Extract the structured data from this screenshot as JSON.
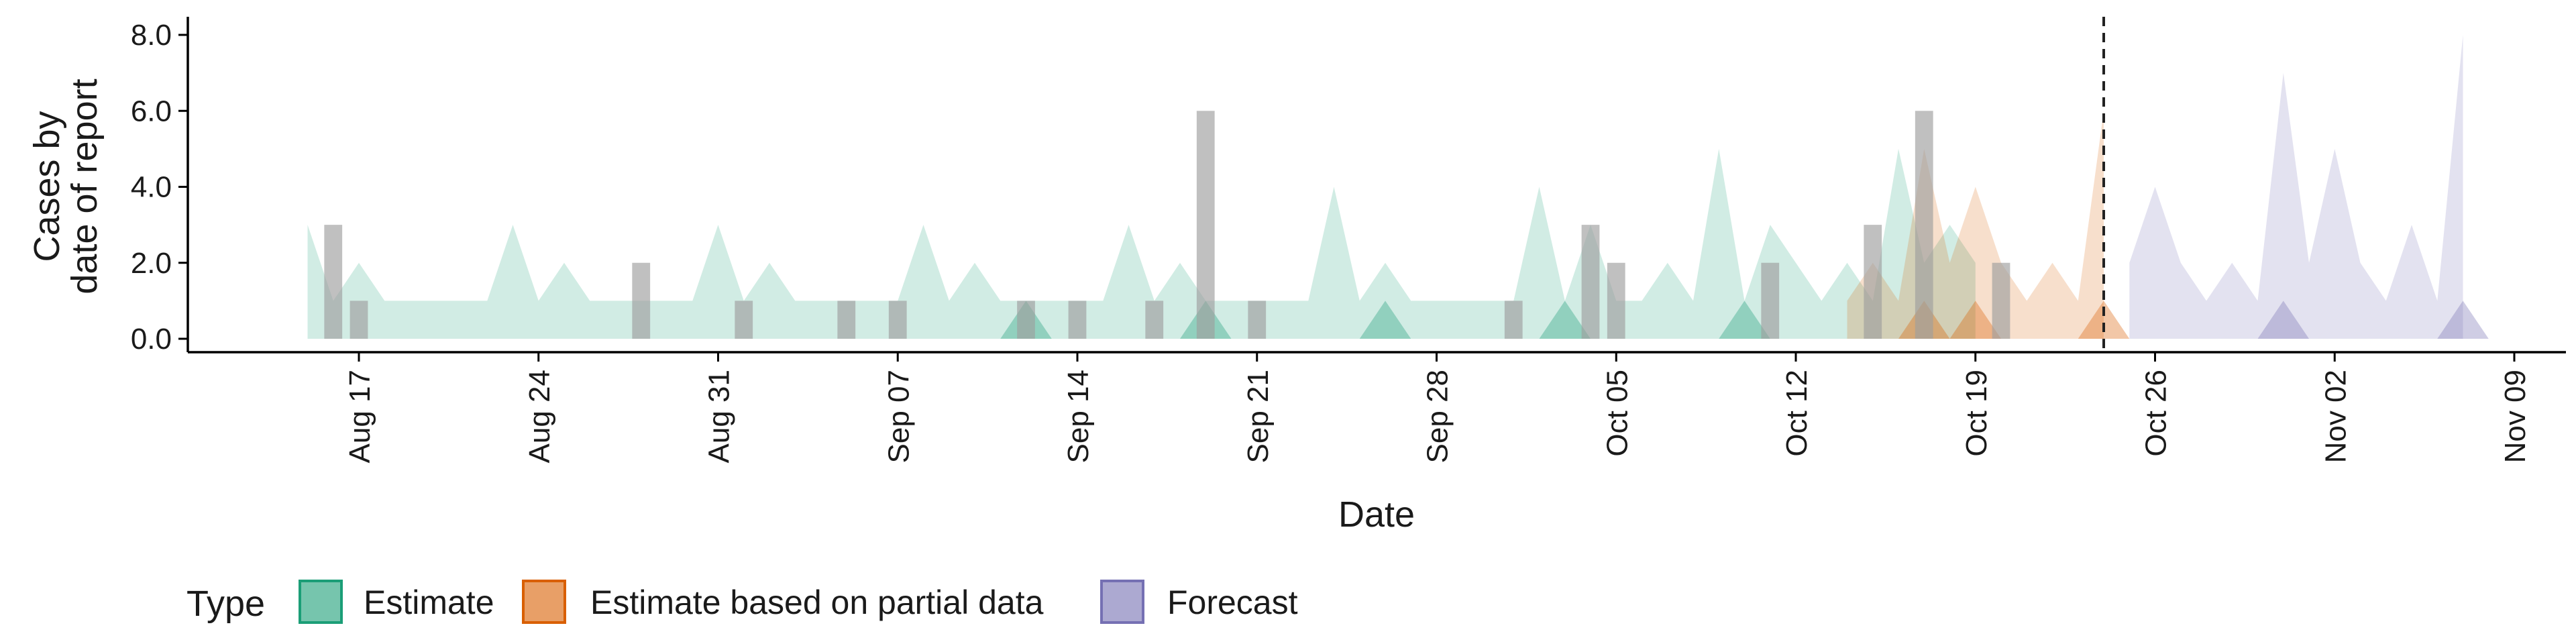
{
  "chart_data": {
    "type": "area",
    "xlabel": "Date",
    "ylabel": [
      "Cases by",
      "date of report"
    ],
    "ylim": [
      0,
      8.4
    ],
    "y_ticks": [
      "0.0",
      "2.0",
      "4.0",
      "6.0",
      "8.0"
    ],
    "x_tick_labels": [
      "Aug 17",
      "Aug 24",
      "Aug 31",
      "Sep 07",
      "Sep 14",
      "Sep 21",
      "Sep 28",
      "Oct 05",
      "Oct 12",
      "Oct 19",
      "Oct 26",
      "Nov 02",
      "Nov 09"
    ],
    "x_tick_dates": [
      "2020-08-17",
      "2020-08-24",
      "2020-08-31",
      "2020-09-07",
      "2020-09-14",
      "2020-09-21",
      "2020-09-28",
      "2020-10-05",
      "2020-10-12",
      "2020-10-19",
      "2020-10-26",
      "2020-11-02",
      "2020-11-09"
    ],
    "x_range": [
      "2020-08-13",
      "2020-11-10"
    ],
    "forecast_date_line": "2020-10-24",
    "grid": false,
    "legend": {
      "title": "Type",
      "position": "bottom",
      "items": [
        {
          "label": "Estimate",
          "fill": "#1b9e77",
          "stroke": "#1b9e77"
        },
        {
          "label": "Estimate based on partial data",
          "fill": "#d95f02",
          "stroke": "#d95f02"
        },
        {
          "label": "Forecast",
          "fill": "#7570b3",
          "stroke": "#7570b3"
        }
      ]
    },
    "colors": {
      "Estimate": "#1b9e77",
      "Estimate based on partial data": "#d95f02",
      "Forecast": "#7570b3",
      "observed": "#9e9e9e"
    },
    "series": [
      {
        "name": "Estimate",
        "start": "2020-08-15",
        "upper": [
          3,
          1,
          2,
          1,
          1,
          1,
          1,
          1,
          3,
          1,
          2,
          1,
          1,
          1,
          1,
          1,
          3,
          1,
          2,
          1,
          1,
          1,
          1,
          1,
          3,
          1,
          2,
          1,
          1,
          1,
          1,
          1,
          3,
          1,
          2,
          1,
          1,
          1,
          1,
          1,
          4,
          1,
          2,
          1,
          1,
          1,
          1,
          1,
          4,
          1,
          3,
          1,
          1,
          2,
          1,
          5,
          1,
          3,
          2,
          1,
          2,
          1,
          5,
          2,
          3,
          2
        ],
        "lower": [
          0,
          0,
          0,
          0,
          0,
          0,
          0,
          0,
          0,
          0,
          0,
          0,
          0,
          0,
          0,
          0,
          0,
          0,
          0,
          0,
          0,
          0,
          0,
          0,
          0,
          0,
          0,
          0,
          0,
          0,
          0,
          0,
          0,
          0,
          0,
          0,
          0,
          0,
          0,
          0,
          0,
          0,
          0,
          0,
          0,
          0,
          0,
          0,
          0,
          0,
          0,
          0,
          0,
          0,
          0,
          0,
          0,
          0,
          0,
          0,
          0,
          0,
          0,
          0,
          0,
          0
        ],
        "inner_upper": [
          0,
          0,
          0,
          0,
          0,
          0,
          0,
          0,
          0,
          0,
          0,
          0,
          0,
          0,
          0,
          0,
          0,
          0,
          0,
          0,
          0,
          0,
          0,
          0,
          0,
          0,
          0,
          0,
          0,
          0,
          0,
          0,
          0,
          0,
          0,
          0,
          0,
          0,
          0,
          0,
          0,
          0,
          0,
          0,
          0,
          0,
          0,
          0,
          0,
          0,
          0,
          0,
          0,
          0,
          0,
          0,
          0,
          0,
          0,
          0,
          0,
          0,
          0,
          0,
          0,
          0
        ],
        "inner_peaks": [
          "2020-09-12",
          "2020-09-19",
          "2020-09-26",
          "2020-10-03",
          "2020-10-10"
        ]
      },
      {
        "name": "Estimate based on partial data",
        "start": "2020-10-14",
        "upper": [
          1,
          2,
          1,
          5,
          2,
          4,
          2,
          1,
          2,
          1,
          6
        ],
        "lower": [
          0,
          0,
          0,
          0,
          0,
          0,
          0,
          0,
          0,
          0,
          0
        ],
        "inner_peaks": [
          "2020-10-17",
          "2020-10-19",
          "2020-10-24"
        ]
      },
      {
        "name": "Forecast",
        "start": "2020-10-25",
        "upper": [
          2,
          4,
          2,
          1,
          2,
          1,
          7,
          2,
          5,
          2,
          1,
          3,
          1,
          8
        ],
        "lower": [
          0,
          0,
          0,
          0,
          0,
          0,
          0,
          0,
          0,
          0,
          0,
          0,
          0,
          0
        ],
        "inner_peaks": [
          "2020-10-31",
          "2020-11-07"
        ]
      }
    ],
    "observed": {
      "dates": [
        "2020-08-16",
        "2020-08-17",
        "2020-08-28",
        "2020-09-01",
        "2020-09-05",
        "2020-09-07",
        "2020-09-12",
        "2020-09-14",
        "2020-09-17",
        "2020-09-19",
        "2020-09-21",
        "2020-10-01",
        "2020-10-04",
        "2020-10-05",
        "2020-10-11",
        "2020-10-15",
        "2020-10-17",
        "2020-10-20"
      ],
      "values": [
        3,
        1,
        2,
        1,
        1,
        1,
        1,
        1,
        1,
        6,
        1,
        1,
        3,
        2,
        2,
        3,
        6,
        2
      ]
    }
  }
}
